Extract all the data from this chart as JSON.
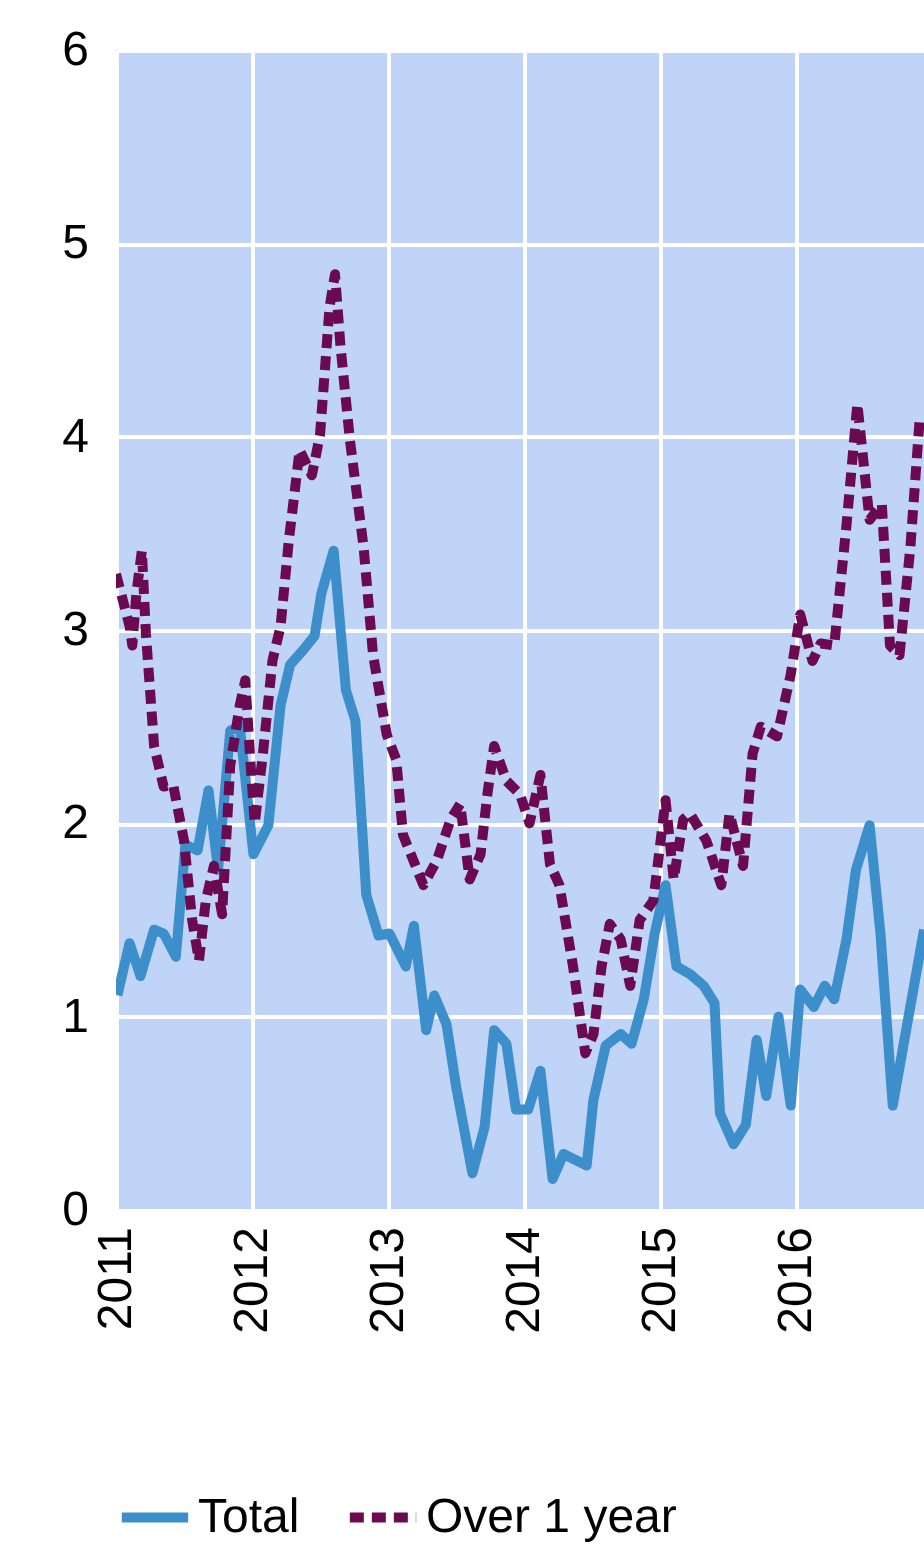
{
  "chart_data": {
    "type": "line",
    "xlim": [
      2011,
      2016.94
    ],
    "xticks": [
      2011,
      2012,
      2013,
      2014,
      2015,
      2016
    ],
    "ylim": [
      0,
      6
    ],
    "yticks": [
      0,
      1,
      2,
      3,
      4,
      5,
      6
    ],
    "grid": true,
    "legend": "bottom",
    "series": [
      {
        "name": "Total",
        "color": "#3d8fcc",
        "line_style": "solid",
        "x": [
          2011.01,
          2011.1,
          2011.18,
          2011.28,
          2011.35,
          2011.44,
          2011.51,
          2011.6,
          2011.68,
          2011.75,
          2011.84,
          2011.91,
          2012.01,
          2012.12,
          2012.21,
          2012.28,
          2012.38,
          2012.46,
          2012.51,
          2012.6,
          2012.69,
          2012.76,
          2012.84,
          2012.93,
          2013.01,
          2013.13,
          2013.19,
          2013.28,
          2013.34,
          2013.43,
          2013.5,
          2013.62,
          2013.71,
          2013.78,
          2013.87,
          2013.94,
          2014.03,
          2014.12,
          2014.21,
          2014.29,
          2014.46,
          2014.51,
          2014.6,
          2014.71,
          2014.79,
          2014.88,
          2014.96,
          2015.04,
          2015.12,
          2015.22,
          2015.32,
          2015.4,
          2015.44,
          2015.54,
          2015.63,
          2015.71,
          2015.78,
          2015.87,
          2015.96,
          2016.03,
          2016.13,
          2016.21,
          2016.28,
          2016.37,
          2016.44,
          2016.54,
          2016.62,
          2016.71,
          2016.94
        ],
        "values": [
          1.11,
          1.38,
          1.21,
          1.45,
          1.43,
          1.31,
          1.89,
          1.86,
          2.17,
          1.76,
          2.48,
          2.5,
          1.84,
          1.99,
          2.61,
          2.82,
          2.9,
          2.97,
          3.19,
          3.41,
          2.69,
          2.53,
          1.63,
          1.42,
          1.43,
          1.26,
          1.47,
          0.93,
          1.11,
          0.96,
          0.64,
          0.19,
          0.43,
          0.93,
          0.86,
          0.52,
          0.52,
          0.72,
          0.16,
          0.29,
          0.23,
          0.57,
          0.85,
          0.91,
          0.86,
          1.09,
          1.43,
          1.68,
          1.26,
          1.22,
          1.16,
          1.07,
          0.5,
          0.34,
          0.44,
          0.88,
          0.59,
          1.0,
          0.54,
          1.14,
          1.05,
          1.16,
          1.09,
          1.4,
          1.76,
          1.99,
          1.43,
          0.54,
          1.45
        ]
      },
      {
        "name": "Over 1 year",
        "color": "#6b0a50",
        "line_style": "dashed",
        "x": [
          2011.0,
          2011.1,
          2011.12,
          2011.15,
          2011.19,
          2011.22,
          2011.28,
          2011.35,
          2011.42,
          2011.5,
          2011.56,
          2011.61,
          2011.66,
          2011.72,
          2011.78,
          2011.84,
          2011.91,
          2011.95,
          2011.99,
          2012.02,
          2012.08,
          2012.15,
          2012.21,
          2012.27,
          2012.35,
          2012.44,
          2012.5,
          2012.57,
          2012.61,
          2012.65,
          2012.72,
          2012.82,
          2012.89,
          2012.99,
          2013.06,
          2013.11,
          2013.26,
          2013.36,
          2013.46,
          2013.53,
          2013.6,
          2013.68,
          2013.73,
          2013.78,
          2013.87,
          2013.97,
          2014.04,
          2014.12,
          2014.19,
          2014.26,
          2014.36,
          2014.45,
          2014.51,
          2014.57,
          2014.63,
          2014.71,
          2014.78,
          2014.85,
          2014.95,
          2015.04,
          2015.1,
          2015.17,
          2015.22,
          2015.34,
          2015.45,
          2015.51,
          2015.61,
          2015.68,
          2015.74,
          2015.86,
          2015.96,
          2016.03,
          2016.12,
          2016.18,
          2016.28,
          2016.37,
          2016.45,
          2016.54,
          2016.63,
          2016.69,
          2016.76,
          2016.84,
          2016.91
        ],
        "values": [
          3.29,
          3.02,
          2.92,
          3.19,
          3.41,
          2.98,
          2.4,
          2.19,
          2.2,
          1.91,
          1.5,
          1.29,
          1.6,
          1.78,
          1.53,
          2.3,
          2.61,
          2.74,
          2.3,
          2.0,
          2.36,
          2.84,
          3.02,
          3.46,
          3.93,
          3.8,
          4.01,
          4.67,
          4.84,
          4.47,
          3.98,
          3.43,
          2.87,
          2.46,
          2.33,
          1.94,
          1.68,
          1.81,
          2.02,
          2.1,
          1.71,
          1.84,
          2.15,
          2.4,
          2.22,
          2.15,
          2.0,
          2.25,
          1.79,
          1.68,
          1.26,
          0.81,
          0.91,
          1.26,
          1.48,
          1.4,
          1.16,
          1.5,
          1.6,
          2.12,
          1.71,
          2.02,
          2.05,
          1.91,
          1.68,
          2.05,
          1.78,
          2.36,
          2.5,
          2.45,
          2.77,
          3.08,
          2.84,
          2.93,
          2.92,
          3.54,
          4.17,
          3.57,
          3.65,
          2.92,
          2.87,
          3.43,
          4.11
        ]
      }
    ]
  }
}
